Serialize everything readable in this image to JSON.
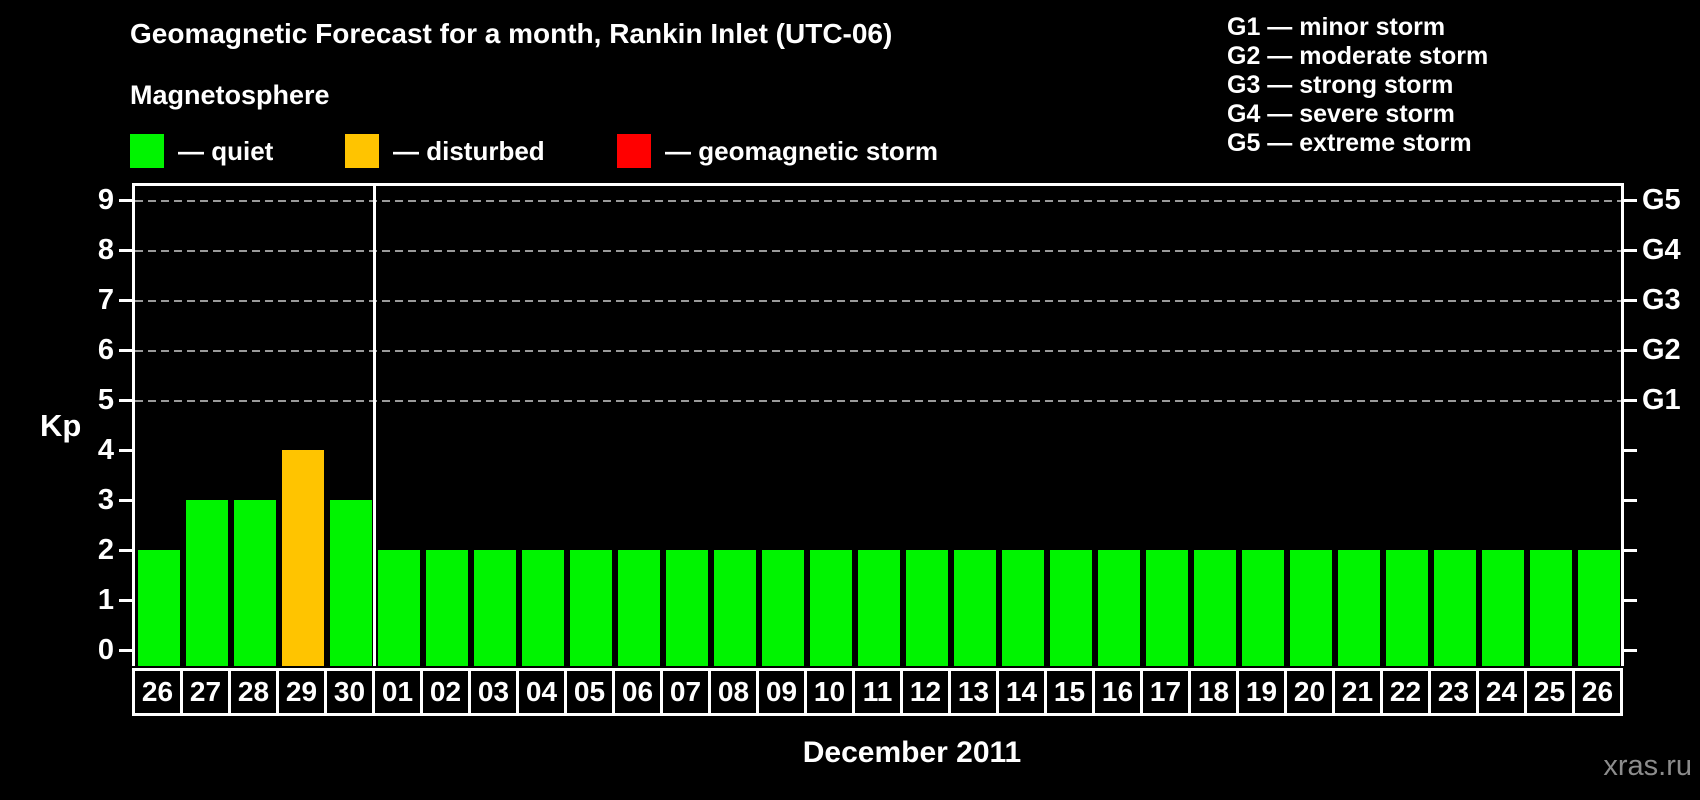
{
  "title": "Geomagnetic Forecast for a month, Rankin Inlet (UTC-06)",
  "subtitle": "Magnetosphere",
  "legend": {
    "items": [
      {
        "name": "quiet",
        "label": "— quiet",
        "color": "#00f400"
      },
      {
        "name": "disturbed",
        "label": "— disturbed",
        "color": "#ffc400"
      },
      {
        "name": "storm",
        "label": "— geomagnetic storm",
        "color": "#ff0000"
      }
    ]
  },
  "storm_scale": [
    "G1 — minor storm",
    "G2 — moderate storm",
    "G3 — strong storm",
    "G4 — severe storm",
    "G5 — extreme storm"
  ],
  "footer": {
    "xlabel": "December 2011",
    "watermark": "xras.ru"
  },
  "chart_data": {
    "type": "bar",
    "title": "Geomagnetic Forecast for a month, Rankin Inlet (UTC-06)",
    "ylabel": "Kp",
    "xlabel": "December 2011",
    "ylim": [
      0,
      9
    ],
    "yticks": [
      0,
      1,
      2,
      3,
      4,
      5,
      6,
      7,
      8,
      9
    ],
    "gridlines_kp": [
      5,
      6,
      7,
      8,
      9
    ],
    "grid": "dashed-gray-at-storm-levels",
    "legend_position": "top",
    "right_axis": [
      {
        "kp": 5,
        "label": "G1"
      },
      {
        "kp": 6,
        "label": "G2"
      },
      {
        "kp": 7,
        "label": "G3"
      },
      {
        "kp": 8,
        "label": "G4"
      },
      {
        "kp": 9,
        "label": "G5"
      }
    ],
    "status_colors": {
      "quiet": "#00f400",
      "disturbed": "#ffc400",
      "storm": "#ff0000"
    },
    "month_separator_after_index": 4,
    "bars": [
      {
        "day": "26",
        "kp": 2,
        "status": "quiet"
      },
      {
        "day": "27",
        "kp": 3,
        "status": "quiet"
      },
      {
        "day": "28",
        "kp": 3,
        "status": "quiet"
      },
      {
        "day": "29",
        "kp": 4,
        "status": "disturbed"
      },
      {
        "day": "30",
        "kp": 3,
        "status": "quiet"
      },
      {
        "day": "01",
        "kp": 2,
        "status": "quiet"
      },
      {
        "day": "02",
        "kp": 2,
        "status": "quiet"
      },
      {
        "day": "03",
        "kp": 2,
        "status": "quiet"
      },
      {
        "day": "04",
        "kp": 2,
        "status": "quiet"
      },
      {
        "day": "05",
        "kp": 2,
        "status": "quiet"
      },
      {
        "day": "06",
        "kp": 2,
        "status": "quiet"
      },
      {
        "day": "07",
        "kp": 2,
        "status": "quiet"
      },
      {
        "day": "08",
        "kp": 2,
        "status": "quiet"
      },
      {
        "day": "09",
        "kp": 2,
        "status": "quiet"
      },
      {
        "day": "10",
        "kp": 2,
        "status": "quiet"
      },
      {
        "day": "11",
        "kp": 2,
        "status": "quiet"
      },
      {
        "day": "12",
        "kp": 2,
        "status": "quiet"
      },
      {
        "day": "13",
        "kp": 2,
        "status": "quiet"
      },
      {
        "day": "14",
        "kp": 2,
        "status": "quiet"
      },
      {
        "day": "15",
        "kp": 2,
        "status": "quiet"
      },
      {
        "day": "16",
        "kp": 2,
        "status": "quiet"
      },
      {
        "day": "17",
        "kp": 2,
        "status": "quiet"
      },
      {
        "day": "18",
        "kp": 2,
        "status": "quiet"
      },
      {
        "day": "19",
        "kp": 2,
        "status": "quiet"
      },
      {
        "day": "20",
        "kp": 2,
        "status": "quiet"
      },
      {
        "day": "21",
        "kp": 2,
        "status": "quiet"
      },
      {
        "day": "22",
        "kp": 2,
        "status": "quiet"
      },
      {
        "day": "23",
        "kp": 2,
        "status": "quiet"
      },
      {
        "day": "24",
        "kp": 2,
        "status": "quiet"
      },
      {
        "day": "25",
        "kp": 2,
        "status": "quiet"
      },
      {
        "day": "26",
        "kp": 2,
        "status": "quiet"
      }
    ]
  }
}
